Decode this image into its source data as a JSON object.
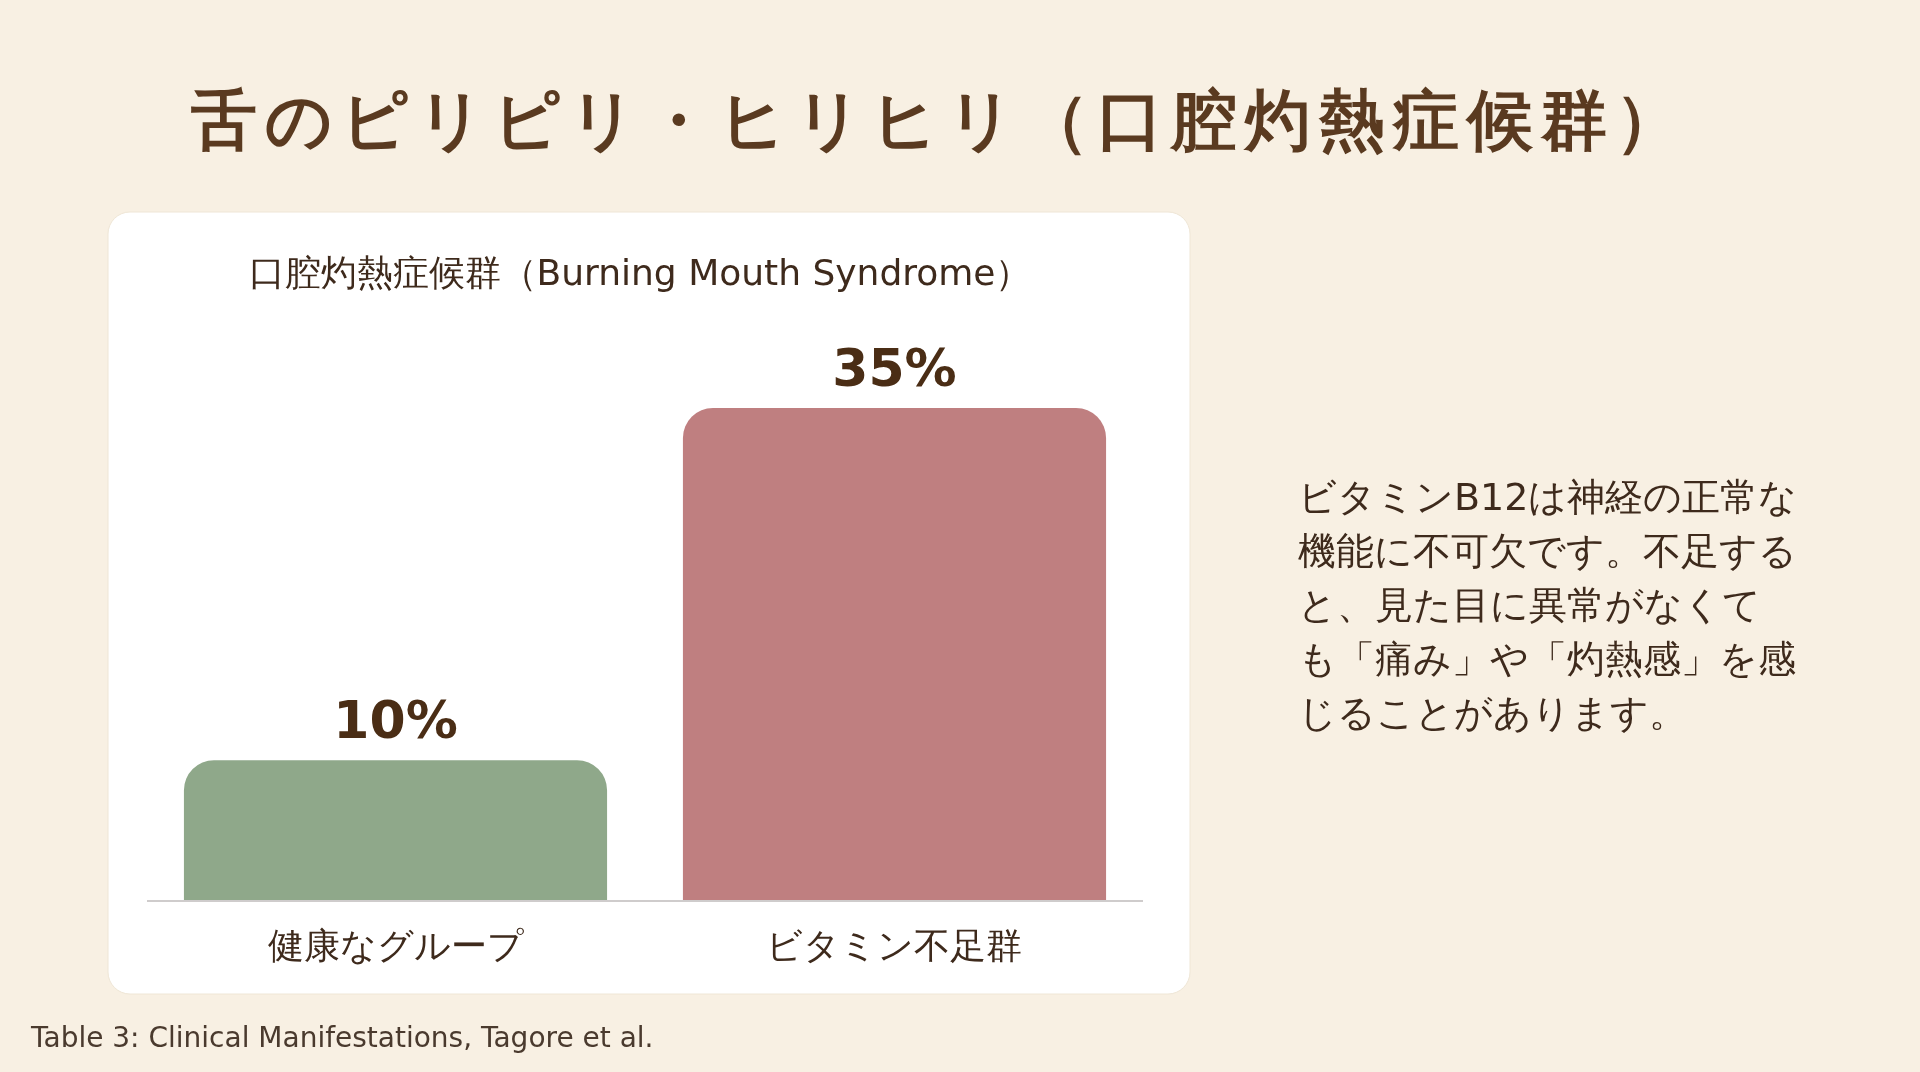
{
  "chart_data": {
    "type": "bar",
    "title": "舌のピリピリ・ヒリヒリ（口腔灼熱症候群）",
    "subtitle": "口腔灼熱症候群（Burning Mouth Syndrome）",
    "categories": [
      "健康なグループ",
      "ビタミン不足群"
    ],
    "values": [
      10,
      35
    ],
    "colors": [
      "#8fa88a",
      "#bf7f80"
    ],
    "value_labels": [
      "10%",
      "35%"
    ],
    "annotations": [
      "ビタミンB12は神経の正常な機能に不可欠です。不足すると、見た目に異常がなくても「痛み」や「灼熱感」を感じることがあります。",
      "Table 3: Clinical Manifestations, Tagore et al."
    ]
  }
}
